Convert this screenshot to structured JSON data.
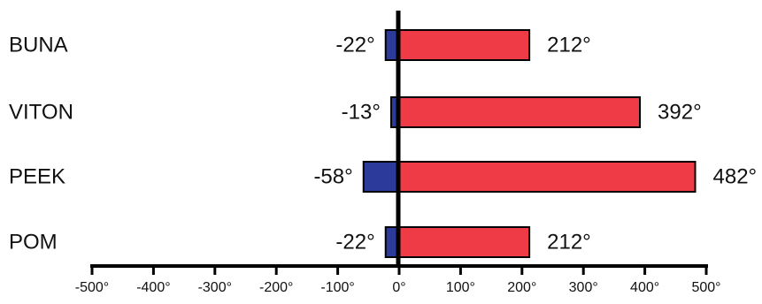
{
  "chart_data": {
    "type": "bar",
    "orientation": "horizontal",
    "unit_suffix": "°",
    "categories": [
      "BUNA",
      "VITON",
      "PEEK",
      "POM"
    ],
    "series": [
      {
        "values": [
          -22,
          -13,
          -58,
          -22
        ],
        "color": "#2b3a9b"
      },
      {
        "values": [
          212,
          392,
          482,
          212
        ],
        "color": "#ee3b45"
      }
    ],
    "data_labels": {
      "negative": [
        "-22°",
        "-13°",
        "-58°",
        "-22°"
      ],
      "positive": [
        "212°",
        "392°",
        "482°",
        "212°"
      ]
    },
    "xlim": [
      -500,
      500
    ],
    "xticks": [
      -500,
      -400,
      -300,
      -200,
      -100,
      0,
      100,
      200,
      300,
      400,
      500
    ],
    "xtick_labels": [
      "-500°",
      "-400°",
      "-300°",
      "-200°",
      "-100°",
      "0°",
      "100°",
      "200°",
      "300°",
      "400°",
      "500°"
    ],
    "title": "",
    "xlabel": "",
    "ylabel": "",
    "grid": false,
    "legend": "none"
  }
}
